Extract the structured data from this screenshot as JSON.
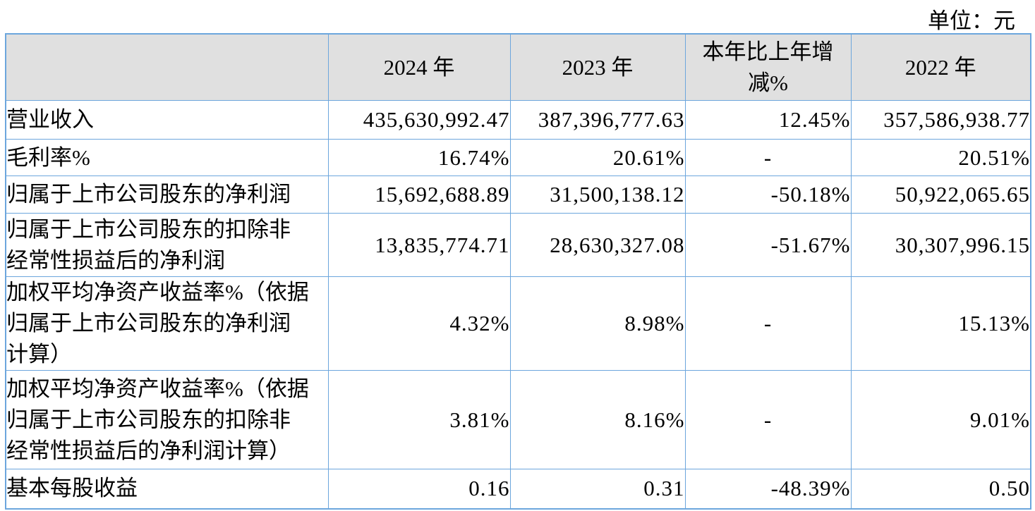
{
  "unit_label": "单位：元",
  "table": {
    "header": {
      "col_indicator": "",
      "col_year_2024": "2024 年",
      "col_year_2023": "2023 年",
      "col_yoy": "本年比上年增\n减%",
      "col_year_2022": "2022 年"
    },
    "rows": [
      {
        "label": "营业收入",
        "y2024": "435,630,992.47",
        "y2023": "387,396,777.63",
        "yoy": "12.45%",
        "y2022": "357,586,938.77"
      },
      {
        "label": "毛利率%",
        "y2024": "16.74%",
        "y2023": "20.61%",
        "yoy": "-",
        "y2022": "20.51%"
      },
      {
        "label": "归属于上市公司股东的净利润",
        "y2024": "15,692,688.89",
        "y2023": "31,500,138.12",
        "yoy": "-50.18%",
        "y2022": "50,922,065.65"
      },
      {
        "label": "归属于上市公司股东的扣除非\n经常性损益后的净利润",
        "y2024": "13,835,774.71",
        "y2023": "28,630,327.08",
        "yoy": "-51.67%",
        "y2022": "30,307,996.15"
      },
      {
        "label": "加权平均净资产收益率%（依据\n归属于上市公司股东的净利润\n计算）",
        "y2024": "4.32%",
        "y2023": "8.98%",
        "yoy": "-",
        "y2022": "15.13%"
      },
      {
        "label": "加权平均净资产收益率%（依据\n归属于上市公司股东的扣除非\n经常性损益后的净利润计算）",
        "y2024": "3.81%",
        "y2023": "8.16%",
        "yoy": "-",
        "y2022": "9.01%"
      },
      {
        "label": "基本每股收益",
        "y2024": "0.16",
        "y2023": "0.31",
        "yoy": "-48.39%",
        "y2022": "0.50"
      }
    ]
  },
  "colors": {
    "border_blue": "#6CA6DD",
    "header_bg": "#E0E0E0"
  }
}
